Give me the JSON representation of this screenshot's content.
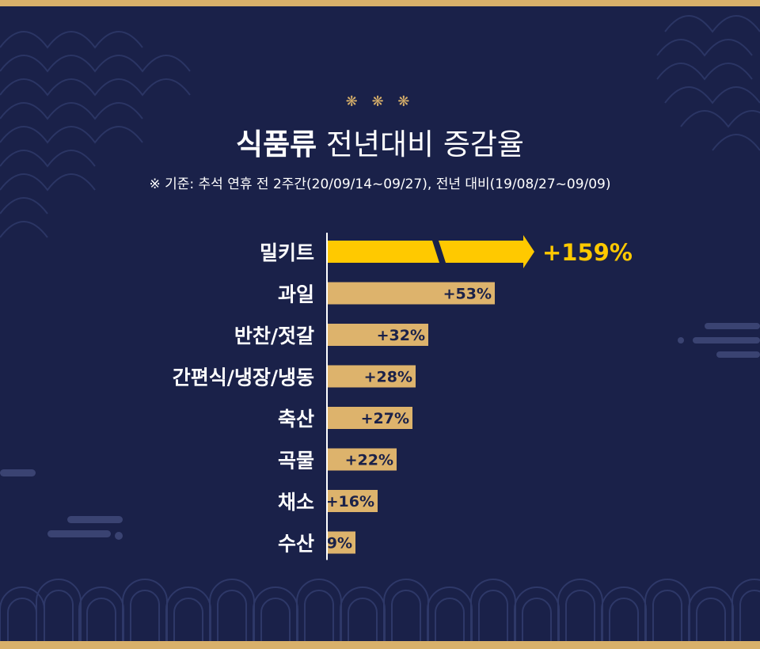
{
  "header": {
    "ornament": "❋ ❋ ❋",
    "title_bold": "식품류",
    "title_rest": "전년대비 증감율",
    "subtitle": "※ 기준: 추석 연휴 전 2주간(20/09/14~09/27), 전년 대비(19/08/27~09/09)"
  },
  "colors": {
    "background": "#1a2149",
    "highlight": "#ffc900",
    "bar": "#ddb36c",
    "border": "#d8b06a",
    "value_dark": "#1a2149"
  },
  "chart_data": {
    "type": "bar",
    "orientation": "horizontal",
    "categories": [
      "밀키트",
      "과일",
      "반찬/젓갈",
      "간편식/냉장/냉동",
      "축산",
      "곡물",
      "채소",
      "수산"
    ],
    "values": [
      159,
      53,
      32,
      28,
      27,
      22,
      16,
      9
    ],
    "labels": [
      "+159%",
      "+53%",
      "+32%",
      "+28%",
      "+27%",
      "+22%",
      "+16%",
      "+9%"
    ],
    "highlight_index": 0,
    "axis_break_on_highlight": true,
    "title": "전년대비 증감율"
  }
}
